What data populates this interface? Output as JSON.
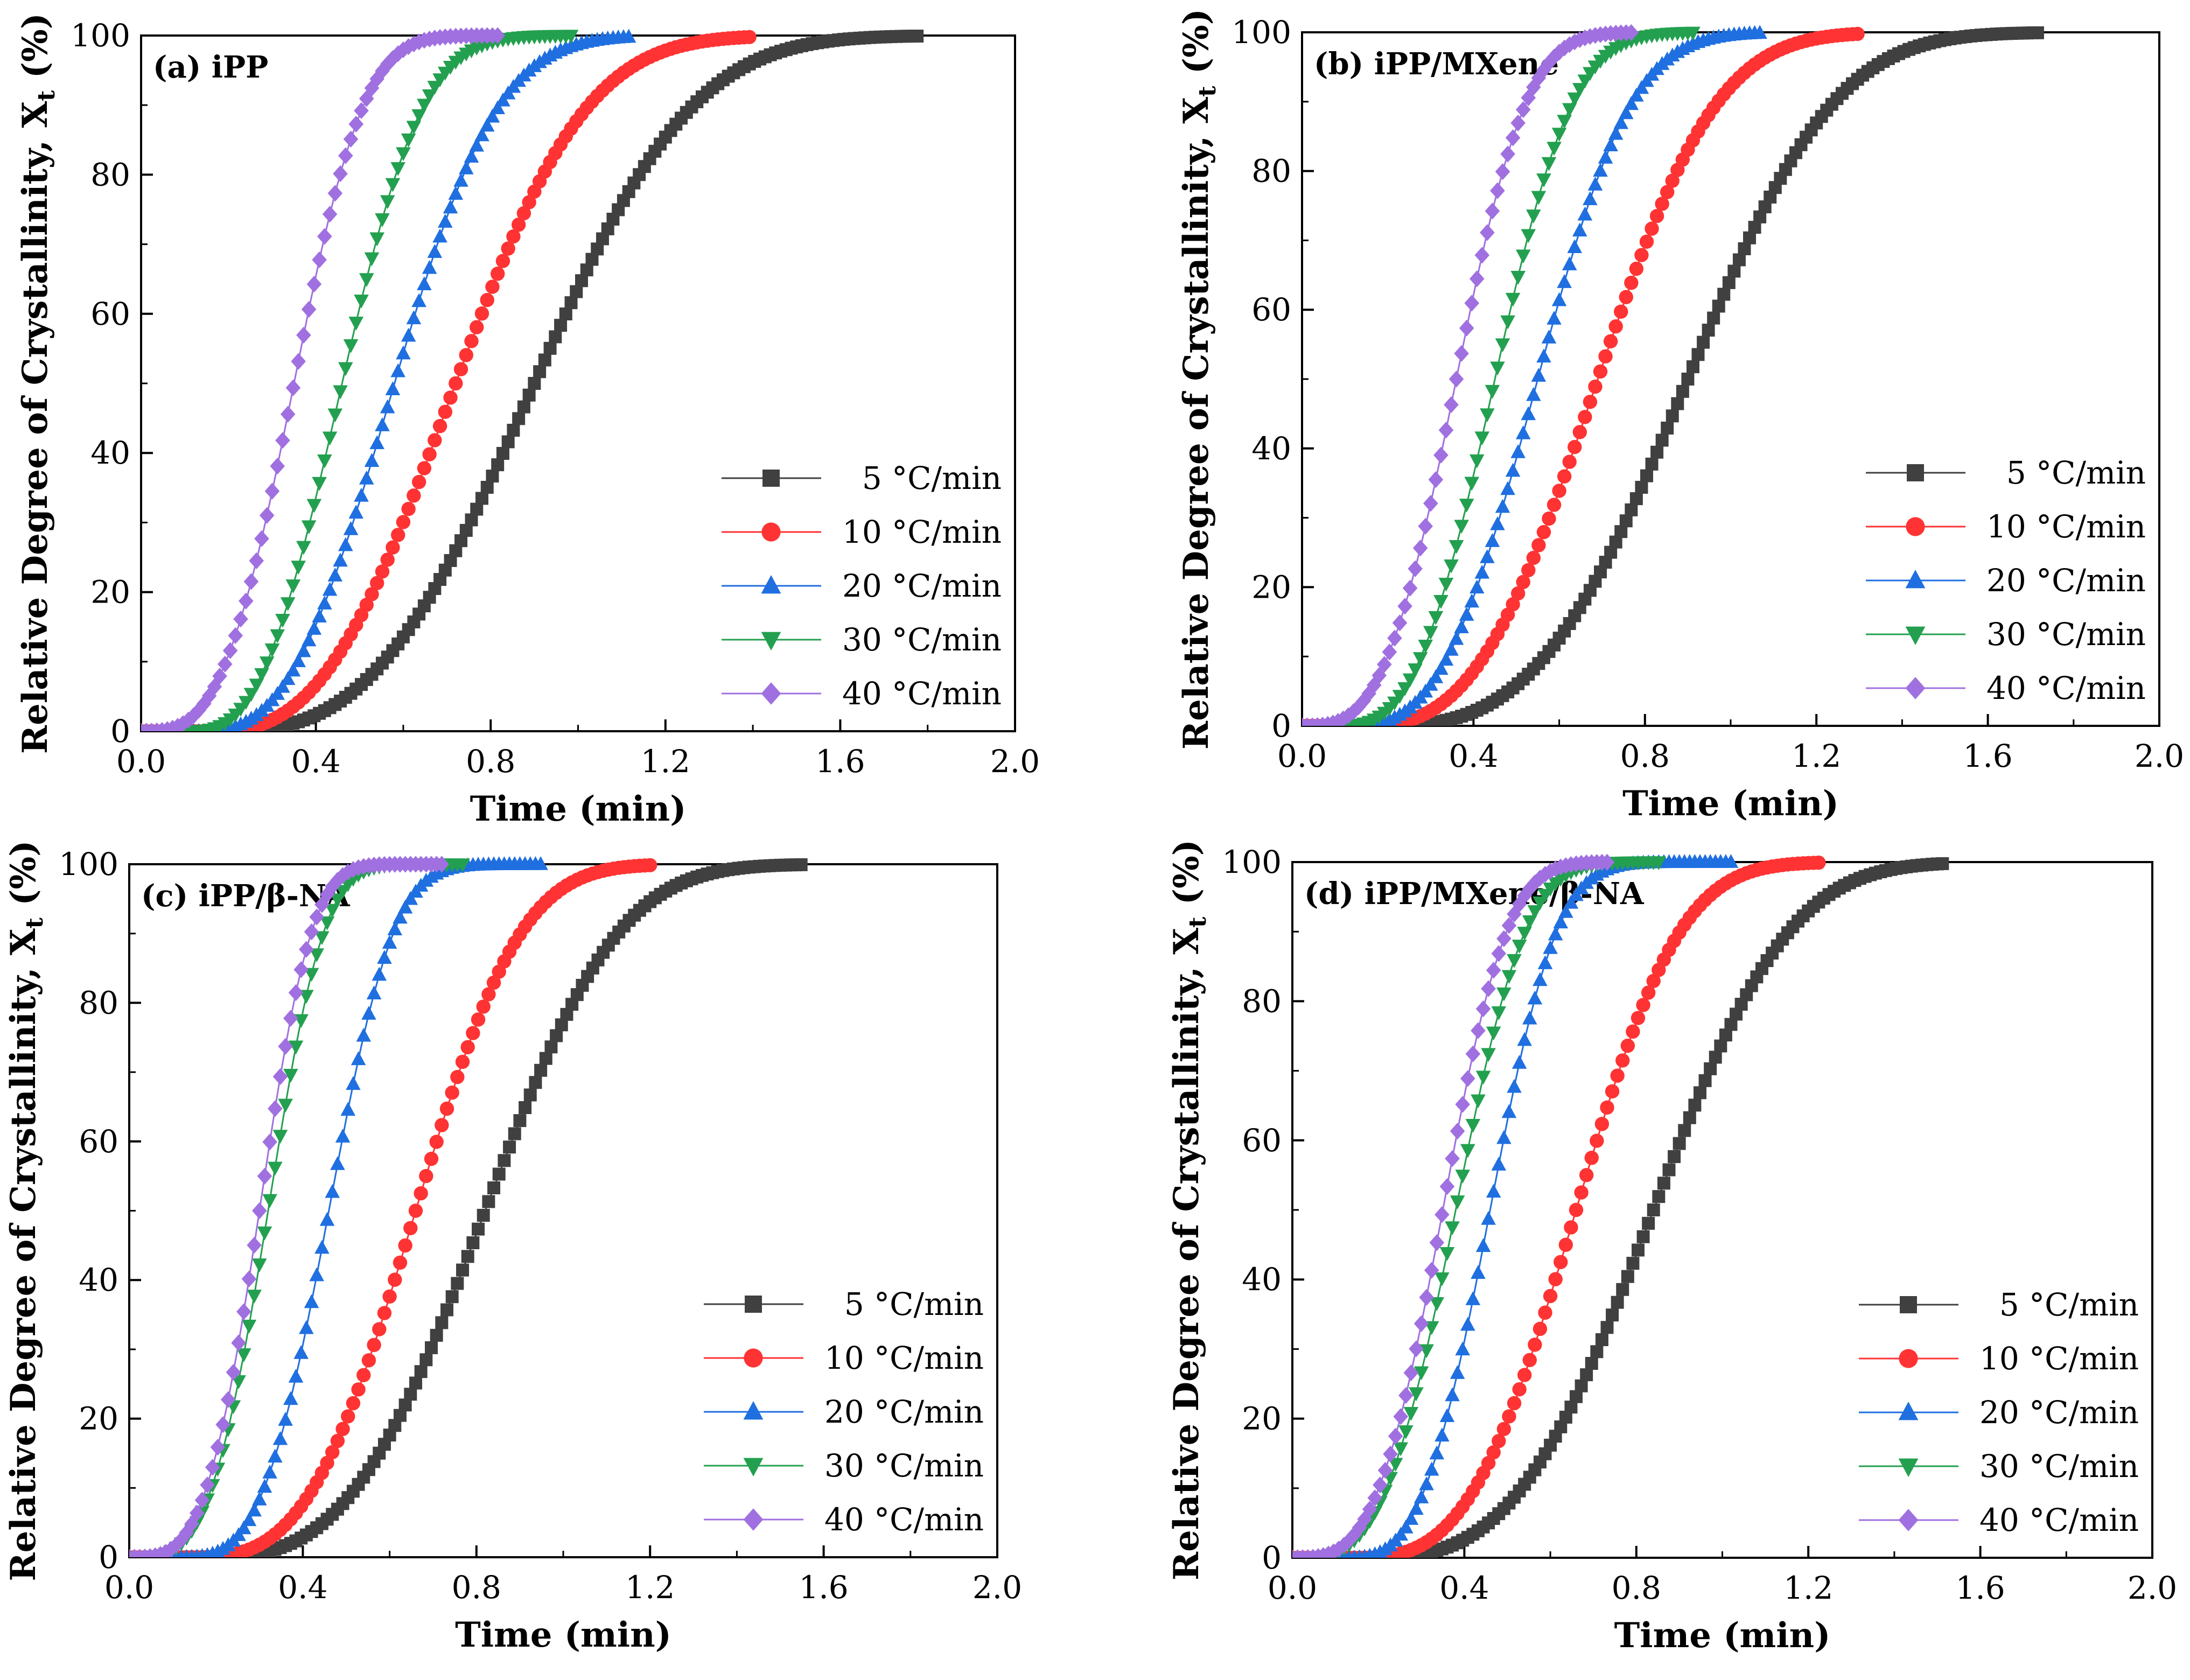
{
  "chart_data": [
    {
      "type": "scatter",
      "panel_label": "(a) iPP",
      "xlabel": "Time (min)",
      "ylabel": "Relative Degree of Crystallinity, X",
      "ylabel_sub": "t",
      "ylabel_unit": " (%)",
      "xlim": [
        0.0,
        2.0
      ],
      "ylim": [
        0,
        100
      ],
      "xticks": [
        "0.0",
        "0.4",
        "0.8",
        "1.2",
        "1.6",
        "2.0"
      ],
      "yticks": [
        "0",
        "20",
        "40",
        "60",
        "80",
        "100"
      ],
      "legend_position": "lower-right",
      "series": [
        {
          "name": "5 °C/min",
          "color": "#404040",
          "marker": "square",
          "t0": 0.16,
          "t_end": 1.78,
          "t_half": 0.9,
          "n": 3.0
        },
        {
          "name": "10 °C/min",
          "color": "#ff3333",
          "marker": "circle",
          "t0": 0.15,
          "t_end": 1.4,
          "t_half": 0.72,
          "n": 2.8
        },
        {
          "name": "20 °C/min",
          "color": "#1f6fe0",
          "marker": "triangle-up",
          "t0": 0.13,
          "t_end": 1.12,
          "t_half": 0.58,
          "n": 2.8
        },
        {
          "name": "30 °C/min",
          "color": "#23a04f",
          "marker": "triangle-down",
          "t0": 0.11,
          "t_end": 0.99,
          "t_half": 0.46,
          "n": 2.8
        },
        {
          "name": "40 °C/min",
          "color": "#a070e0",
          "marker": "diamond",
          "t0": 0.0,
          "t_end": 0.82,
          "t_half": 0.35,
          "n": 3.2
        }
      ]
    },
    {
      "type": "scatter",
      "panel_label": "(b) iPP/MXene",
      "xlabel": "Time (min)",
      "ylabel": "Relative Degree of Crystallinity, X",
      "ylabel_sub": "t",
      "ylabel_unit": " (%)",
      "xlim": [
        0.0,
        2.0
      ],
      "ylim": [
        0,
        100
      ],
      "xticks": [
        "0.0",
        "0.4",
        "0.8",
        "1.2",
        "1.6",
        "2.0"
      ],
      "yticks": [
        "0",
        "20",
        "40",
        "60",
        "80",
        "100"
      ],
      "legend_position": "lower-right",
      "series": [
        {
          "name": "5 °C/min",
          "color": "#404040",
          "marker": "square",
          "t0": 0.15,
          "t_end": 1.72,
          "t_half": 0.9,
          "n": 3.2
        },
        {
          "name": "10 °C/min",
          "color": "#ff3333",
          "marker": "circle",
          "t0": 0.12,
          "t_end": 1.3,
          "t_half": 0.69,
          "n": 3.0
        },
        {
          "name": "20 °C/min",
          "color": "#1f6fe0",
          "marker": "triangle-up",
          "t0": 0.1,
          "t_end": 1.07,
          "t_half": 0.55,
          "n": 3.0
        },
        {
          "name": "30 °C/min",
          "color": "#23a04f",
          "marker": "triangle-down",
          "t0": 0.08,
          "t_end": 0.92,
          "t_half": 0.45,
          "n": 3.0
        },
        {
          "name": "40 °C/min",
          "color": "#a070e0",
          "marker": "diamond",
          "t0": 0.0,
          "t_end": 0.77,
          "t_half": 0.36,
          "n": 3.2
        }
      ]
    },
    {
      "type": "scatter",
      "panel_label": "(c) iPP/β-NA",
      "xlabel": "Time (min)",
      "ylabel": "Relative Degree of Crystallinity, X",
      "ylabel_sub": "t",
      "ylabel_unit": " (%)",
      "xlim": [
        0.0,
        2.0
      ],
      "ylim": [
        0,
        100
      ],
      "xticks": [
        "0.0",
        "0.4",
        "0.8",
        "1.2",
        "1.6",
        "2.0"
      ],
      "yticks": [
        "0",
        "20",
        "40",
        "60",
        "80",
        "100"
      ],
      "legend_position": "lower-right",
      "series": [
        {
          "name": "5 °C/min",
          "color": "#404040",
          "marker": "square",
          "t0": 0.15,
          "t_end": 1.55,
          "t_half": 0.82,
          "n": 3.2
        },
        {
          "name": "10 °C/min",
          "color": "#ff3333",
          "marker": "circle",
          "t0": 0.13,
          "t_end": 1.2,
          "t_half": 0.66,
          "n": 3.2
        },
        {
          "name": "20 °C/min",
          "color": "#1f6fe0",
          "marker": "triangle-up",
          "t0": 0.11,
          "t_end": 0.95,
          "t_half": 0.46,
          "n": 3.4
        },
        {
          "name": "30 °C/min",
          "color": "#23a04f",
          "marker": "triangle-down",
          "t0": 0.0,
          "t_end": 0.77,
          "t_half": 0.32,
          "n": 3.6
        },
        {
          "name": "40 °C/min",
          "color": "#a070e0",
          "marker": "diamond",
          "t0": 0.0,
          "t_end": 0.72,
          "t_half": 0.3,
          "n": 3.6
        }
      ]
    },
    {
      "type": "scatter",
      "panel_label": "(d) iPP/MXene/β-NA",
      "xlabel": "Time (min)",
      "ylabel": "Relative Degree of Crystallinity, X",
      "ylabel_sub": "t",
      "ylabel_unit": " (%)",
      "xlim": [
        0.0,
        2.0
      ],
      "ylim": [
        0,
        100
      ],
      "xticks": [
        "0.0",
        "0.4",
        "0.8",
        "1.2",
        "1.6",
        "2.0"
      ],
      "yticks": [
        "0",
        "20",
        "40",
        "60",
        "80",
        "100"
      ],
      "legend_position": "lower-right",
      "series": [
        {
          "name": "5 °C/min",
          "color": "#404040",
          "marker": "square",
          "t0": 0.15,
          "t_end": 1.52,
          "t_half": 0.84,
          "n": 3.2
        },
        {
          "name": "10 °C/min",
          "color": "#ff3333",
          "marker": "circle",
          "t0": 0.13,
          "t_end": 1.23,
          "t_half": 0.66,
          "n": 3.2
        },
        {
          "name": "20 °C/min",
          "color": "#1f6fe0",
          "marker": "triangle-up",
          "t0": 0.12,
          "t_end": 1.02,
          "t_half": 0.46,
          "n": 3.2
        },
        {
          "name": "30 °C/min",
          "color": "#23a04f",
          "marker": "triangle-down",
          "t0": 0.0,
          "t_end": 0.86,
          "t_half": 0.38,
          "n": 3.4
        },
        {
          "name": "40 °C/min",
          "color": "#a070e0",
          "marker": "diamond",
          "t0": 0.0,
          "t_end": 0.74,
          "t_half": 0.35,
          "n": 3.4
        }
      ]
    }
  ]
}
